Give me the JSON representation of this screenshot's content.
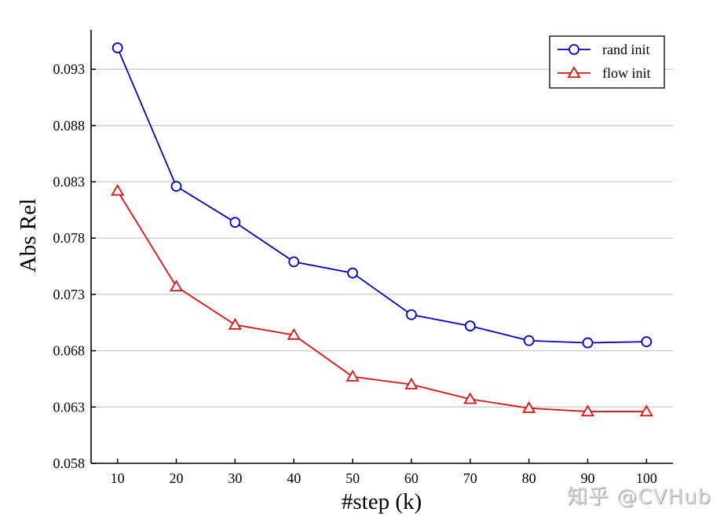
{
  "chart_data": {
    "type": "line",
    "title": "",
    "xlabel": "#step (k)",
    "ylabel": "Abs Rel",
    "x": [
      10,
      20,
      30,
      40,
      50,
      60,
      70,
      80,
      90,
      100
    ],
    "xticks": [
      "10",
      "20",
      "30",
      "40",
      "50",
      "60",
      "70",
      "80",
      "90",
      "100"
    ],
    "yticks": [
      "0.058",
      "0.063",
      "0.068",
      "0.073",
      "0.078",
      "0.083",
      "0.088",
      "0.093"
    ],
    "ytick_values": [
      0.058,
      0.063,
      0.068,
      0.073,
      0.078,
      0.083,
      0.088,
      0.093
    ],
    "xlim": [
      5.5,
      104.5
    ],
    "ylim": [
      0.058,
      0.0965
    ],
    "grid": "horizontal",
    "legend_position": "top-right",
    "series": [
      {
        "name": "rand init",
        "color": "#0000c8",
        "marker": "circle",
        "values": [
          0.0949,
          0.0826,
          0.0794,
          0.0759,
          0.0749,
          0.0712,
          0.0702,
          0.0689,
          0.0687,
          0.0688
        ]
      },
      {
        "name": "flow init",
        "color": "#e01010",
        "marker": "triangle",
        "values": [
          0.0822,
          0.0737,
          0.0703,
          0.0694,
          0.0657,
          0.065,
          0.0637,
          0.0629,
          0.0626,
          0.0626
        ]
      }
    ]
  },
  "watermark": "知乎 @CVHub"
}
